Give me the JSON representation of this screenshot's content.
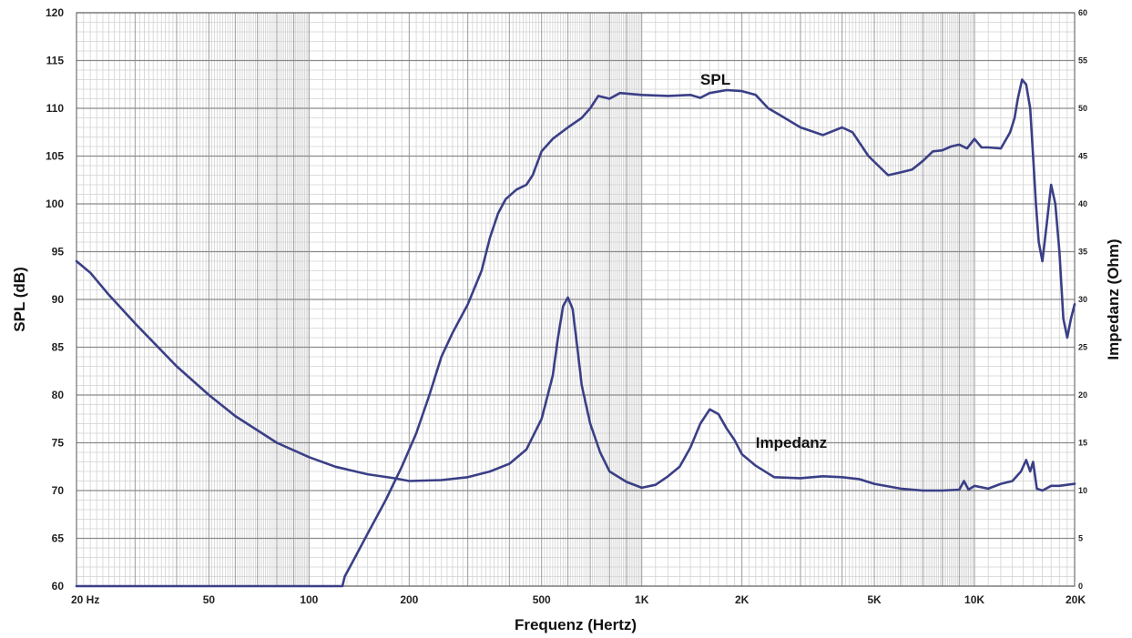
{
  "chart_data": {
    "type": "line",
    "title": "",
    "xlabel": "Frequenz (Hertz)",
    "ylabel": "SPL (dB)",
    "y2label": "Impedanz (Ohm)",
    "x_scale": "log",
    "xlim": [
      20,
      20000
    ],
    "ylim": [
      60,
      120
    ],
    "y2lim": [
      0,
      60
    ],
    "grid": true,
    "line_color": "#3a3f86",
    "x_ticks": [
      {
        "value": 20,
        "label": "20  Hz"
      },
      {
        "value": 50,
        "label": "50"
      },
      {
        "value": 100,
        "label": "100"
      },
      {
        "value": 200,
        "label": "200"
      },
      {
        "value": 500,
        "label": "500"
      },
      {
        "value": 1000,
        "label": "1K"
      },
      {
        "value": 2000,
        "label": "2K"
      },
      {
        "value": 5000,
        "label": "5K"
      },
      {
        "value": 10000,
        "label": "10K"
      },
      {
        "value": 20000,
        "label": "20K"
      }
    ],
    "y_ticks": [
      "60",
      "65",
      "70",
      "75",
      "80",
      "85",
      "90",
      "95",
      "100",
      "105",
      "110",
      "115",
      "120"
    ],
    "y2_ticks": [
      "0",
      "5",
      "10",
      "15",
      "20",
      "25",
      "30",
      "35",
      "40",
      "45",
      "50",
      "55",
      "60"
    ],
    "series": [
      {
        "name": "SPL",
        "axis": "left",
        "label_at": [
          1500,
          112.5
        ],
        "points": [
          [
            20,
            60
          ],
          [
            126,
            60
          ],
          [
            128,
            61
          ],
          [
            135,
            62.5
          ],
          [
            150,
            65.5
          ],
          [
            170,
            69
          ],
          [
            190,
            72.5
          ],
          [
            210,
            76
          ],
          [
            230,
            80
          ],
          [
            250,
            84
          ],
          [
            270,
            86.5
          ],
          [
            300,
            89.5
          ],
          [
            330,
            93
          ],
          [
            350,
            96.5
          ],
          [
            370,
            99
          ],
          [
            390,
            100.5
          ],
          [
            420,
            101.5
          ],
          [
            450,
            102
          ],
          [
            470,
            103
          ],
          [
            500,
            105.5
          ],
          [
            540,
            106.8
          ],
          [
            600,
            108
          ],
          [
            660,
            109
          ],
          [
            700,
            110
          ],
          [
            740,
            111.3
          ],
          [
            800,
            111
          ],
          [
            860,
            111.6
          ],
          [
            1000,
            111.4
          ],
          [
            1200,
            111.3
          ],
          [
            1400,
            111.4
          ],
          [
            1500,
            111.1
          ],
          [
            1600,
            111.6
          ],
          [
            1800,
            111.9
          ],
          [
            2000,
            111.8
          ],
          [
            2200,
            111.4
          ],
          [
            2400,
            110
          ],
          [
            2600,
            109.3
          ],
          [
            3000,
            108
          ],
          [
            3500,
            107.2
          ],
          [
            4000,
            108
          ],
          [
            4300,
            107.5
          ],
          [
            4800,
            105
          ],
          [
            5500,
            103
          ],
          [
            6000,
            103.3
          ],
          [
            6500,
            103.6
          ],
          [
            7000,
            104.5
          ],
          [
            7500,
            105.5
          ],
          [
            8000,
            105.6
          ],
          [
            8500,
            106
          ],
          [
            9000,
            106.2
          ],
          [
            9500,
            105.8
          ],
          [
            10000,
            106.8
          ],
          [
            10500,
            105.9
          ],
          [
            11000,
            105.9
          ],
          [
            12000,
            105.8
          ],
          [
            12800,
            107.5
          ],
          [
            13200,
            109
          ],
          [
            13500,
            111
          ],
          [
            13900,
            113
          ],
          [
            14300,
            112.5
          ],
          [
            14700,
            110
          ],
          [
            15000,
            105
          ],
          [
            15300,
            100
          ],
          [
            15600,
            96
          ],
          [
            16000,
            94
          ],
          [
            16500,
            98
          ],
          [
            17000,
            102
          ],
          [
            17500,
            100
          ],
          [
            18000,
            95
          ],
          [
            18500,
            88
          ],
          [
            19000,
            86
          ],
          [
            19500,
            88
          ],
          [
            20000,
            89.5
          ]
        ]
      },
      {
        "name": "Impedanz",
        "axis": "right",
        "label_at": [
          2200,
          14.5
        ],
        "points": [
          [
            20,
            34
          ],
          [
            22,
            32.8
          ],
          [
            25,
            30.5
          ],
          [
            30,
            27.5
          ],
          [
            40,
            23
          ],
          [
            50,
            20
          ],
          [
            60,
            17.8
          ],
          [
            80,
            15
          ],
          [
            100,
            13.5
          ],
          [
            120,
            12.5
          ],
          [
            150,
            11.7
          ],
          [
            180,
            11.3
          ],
          [
            200,
            11
          ],
          [
            250,
            11.1
          ],
          [
            300,
            11.4
          ],
          [
            350,
            12
          ],
          [
            400,
            12.8
          ],
          [
            450,
            14.3
          ],
          [
            500,
            17.5
          ],
          [
            540,
            22
          ],
          [
            560,
            26
          ],
          [
            580,
            29.3
          ],
          [
            600,
            30.2
          ],
          [
            620,
            29
          ],
          [
            640,
            25
          ],
          [
            660,
            21
          ],
          [
            700,
            17
          ],
          [
            750,
            14
          ],
          [
            800,
            12
          ],
          [
            900,
            10.9
          ],
          [
            1000,
            10.3
          ],
          [
            1100,
            10.6
          ],
          [
            1200,
            11.5
          ],
          [
            1300,
            12.5
          ],
          [
            1400,
            14.5
          ],
          [
            1500,
            17
          ],
          [
            1600,
            18.5
          ],
          [
            1700,
            18
          ],
          [
            1800,
            16.5
          ],
          [
            1900,
            15.3
          ],
          [
            2000,
            13.8
          ],
          [
            2200,
            12.6
          ],
          [
            2500,
            11.4
          ],
          [
            3000,
            11.3
          ],
          [
            3500,
            11.5
          ],
          [
            4000,
            11.4
          ],
          [
            4500,
            11.2
          ],
          [
            5000,
            10.7
          ],
          [
            6000,
            10.2
          ],
          [
            7000,
            10
          ],
          [
            8000,
            10
          ],
          [
            9000,
            10.1
          ],
          [
            9300,
            11
          ],
          [
            9600,
            10.1
          ],
          [
            10000,
            10.5
          ],
          [
            11000,
            10.2
          ],
          [
            12000,
            10.7
          ],
          [
            13000,
            11
          ],
          [
            13800,
            12
          ],
          [
            14300,
            13.2
          ],
          [
            14700,
            12
          ],
          [
            15000,
            13
          ],
          [
            15400,
            10.2
          ],
          [
            16000,
            10
          ],
          [
            17000,
            10.5
          ],
          [
            18000,
            10.5
          ],
          [
            20000,
            10.7
          ]
        ]
      }
    ]
  }
}
